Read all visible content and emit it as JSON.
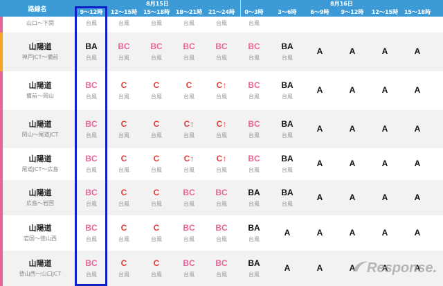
{
  "header": {
    "route_col_label": "路線名",
    "date1": "8月15日",
    "date2": "8月16日",
    "slots": [
      "9～12時",
      "12～15時",
      "15～18時",
      "18～21時",
      "21～24時",
      "0～3時",
      "3～6時",
      "6～9時",
      "9～12時",
      "12～15時",
      "15～18時"
    ]
  },
  "top_partial": {
    "segment": "山口～下関",
    "subs": [
      "台風",
      "台風",
      "台風",
      "台風",
      "台風",
      "台風",
      "",
      "",
      "",
      "",
      ""
    ]
  },
  "rows": [
    {
      "name": "山陽道",
      "segment": "神戸JCT～備前",
      "stripe": "#f5a623",
      "cells": [
        {
          "level": "BA",
          "sub": "台風"
        },
        {
          "level": "BC",
          "sub": "台風"
        },
        {
          "level": "BC",
          "sub": "台風"
        },
        {
          "level": "BC",
          "sub": "台風"
        },
        {
          "level": "BC",
          "sub": "台風"
        },
        {
          "level": "BC",
          "sub": "台風"
        },
        {
          "level": "BA",
          "sub": "台風"
        },
        {
          "level": "A",
          "sub": ""
        },
        {
          "level": "A",
          "sub": ""
        },
        {
          "level": "A",
          "sub": ""
        },
        {
          "level": "A",
          "sub": ""
        }
      ]
    },
    {
      "name": "山陽道",
      "segment": "備前～岡山",
      "stripe": "#e8659a",
      "cells": [
        {
          "level": "BC",
          "sub": "台風"
        },
        {
          "level": "C",
          "sub": "台風"
        },
        {
          "level": "C",
          "sub": "台風"
        },
        {
          "level": "C",
          "sub": "台風"
        },
        {
          "level": "C↑",
          "sub": "台風"
        },
        {
          "level": "BC",
          "sub": "台風"
        },
        {
          "level": "BA",
          "sub": "台風"
        },
        {
          "level": "A",
          "sub": ""
        },
        {
          "level": "A",
          "sub": ""
        },
        {
          "level": "A",
          "sub": ""
        },
        {
          "level": "A",
          "sub": ""
        }
      ]
    },
    {
      "name": "山陽道",
      "segment": "岡山～尾道JCT",
      "stripe": "#e8659a",
      "cells": [
        {
          "level": "BC",
          "sub": "台風"
        },
        {
          "level": "C",
          "sub": "台風"
        },
        {
          "level": "C",
          "sub": "台風"
        },
        {
          "level": "C↑",
          "sub": "台風"
        },
        {
          "level": "C↑",
          "sub": "台風"
        },
        {
          "level": "BC",
          "sub": "台風"
        },
        {
          "level": "BA",
          "sub": "台風"
        },
        {
          "level": "A",
          "sub": ""
        },
        {
          "level": "A",
          "sub": ""
        },
        {
          "level": "A",
          "sub": ""
        },
        {
          "level": "A",
          "sub": ""
        }
      ]
    },
    {
      "name": "山陽道",
      "segment": "尾道JCT～広島",
      "stripe": "#e8659a",
      "cells": [
        {
          "level": "BC",
          "sub": "台風"
        },
        {
          "level": "C",
          "sub": "台風"
        },
        {
          "level": "C",
          "sub": "台風"
        },
        {
          "level": "C↑",
          "sub": "台風"
        },
        {
          "level": "C↑",
          "sub": "台風"
        },
        {
          "level": "BC",
          "sub": "台風"
        },
        {
          "level": "BA",
          "sub": "台風"
        },
        {
          "level": "A",
          "sub": ""
        },
        {
          "level": "A",
          "sub": ""
        },
        {
          "level": "A",
          "sub": ""
        },
        {
          "level": "A",
          "sub": ""
        }
      ]
    },
    {
      "name": "山陽道",
      "segment": "広島～岩国",
      "stripe": "#e8659a",
      "cells": [
        {
          "level": "BC",
          "sub": "台風"
        },
        {
          "level": "C",
          "sub": "台風"
        },
        {
          "level": "C",
          "sub": "台風"
        },
        {
          "level": "BC",
          "sub": "台風"
        },
        {
          "level": "BC",
          "sub": "台風"
        },
        {
          "level": "BA",
          "sub": "台風"
        },
        {
          "level": "BA",
          "sub": "台風"
        },
        {
          "level": "A",
          "sub": ""
        },
        {
          "level": "A",
          "sub": ""
        },
        {
          "level": "A",
          "sub": ""
        },
        {
          "level": "A",
          "sub": ""
        }
      ]
    },
    {
      "name": "山陽道",
      "segment": "岩国～徳山西",
      "stripe": "#e8659a",
      "cells": [
        {
          "level": "BC",
          "sub": "台風"
        },
        {
          "level": "C",
          "sub": "台風"
        },
        {
          "level": "C",
          "sub": "台風"
        },
        {
          "level": "BC",
          "sub": "台風"
        },
        {
          "level": "BC",
          "sub": "台風"
        },
        {
          "level": "BA",
          "sub": "台風"
        },
        {
          "level": "A",
          "sub": ""
        },
        {
          "level": "A",
          "sub": ""
        },
        {
          "level": "A",
          "sub": ""
        },
        {
          "level": "A",
          "sub": ""
        },
        {
          "level": "A",
          "sub": ""
        }
      ]
    },
    {
      "name": "山陽道",
      "segment": "徳山西～山口JCT",
      "stripe": "#e8659a",
      "cells": [
        {
          "level": "BC",
          "sub": "台風"
        },
        {
          "level": "C",
          "sub": "台風"
        },
        {
          "level": "C",
          "sub": "台風"
        },
        {
          "level": "BC",
          "sub": "台風"
        },
        {
          "level": "BC",
          "sub": "台風"
        },
        {
          "level": "BA",
          "sub": "台風"
        },
        {
          "level": "A",
          "sub": ""
        },
        {
          "level": "A",
          "sub": ""
        },
        {
          "level": "A",
          "sub": ""
        },
        {
          "level": "A",
          "sub": ""
        },
        {
          "level": "A",
          "sub": ""
        }
      ]
    }
  ],
  "watermark": {
    "text": "Response."
  },
  "colors": {
    "header_bg": "#3c9bd6",
    "highlight_border": "#1020c8",
    "level_BC": "#e8659a",
    "level_C": "#e23c3c",
    "level_A": "#111111"
  }
}
